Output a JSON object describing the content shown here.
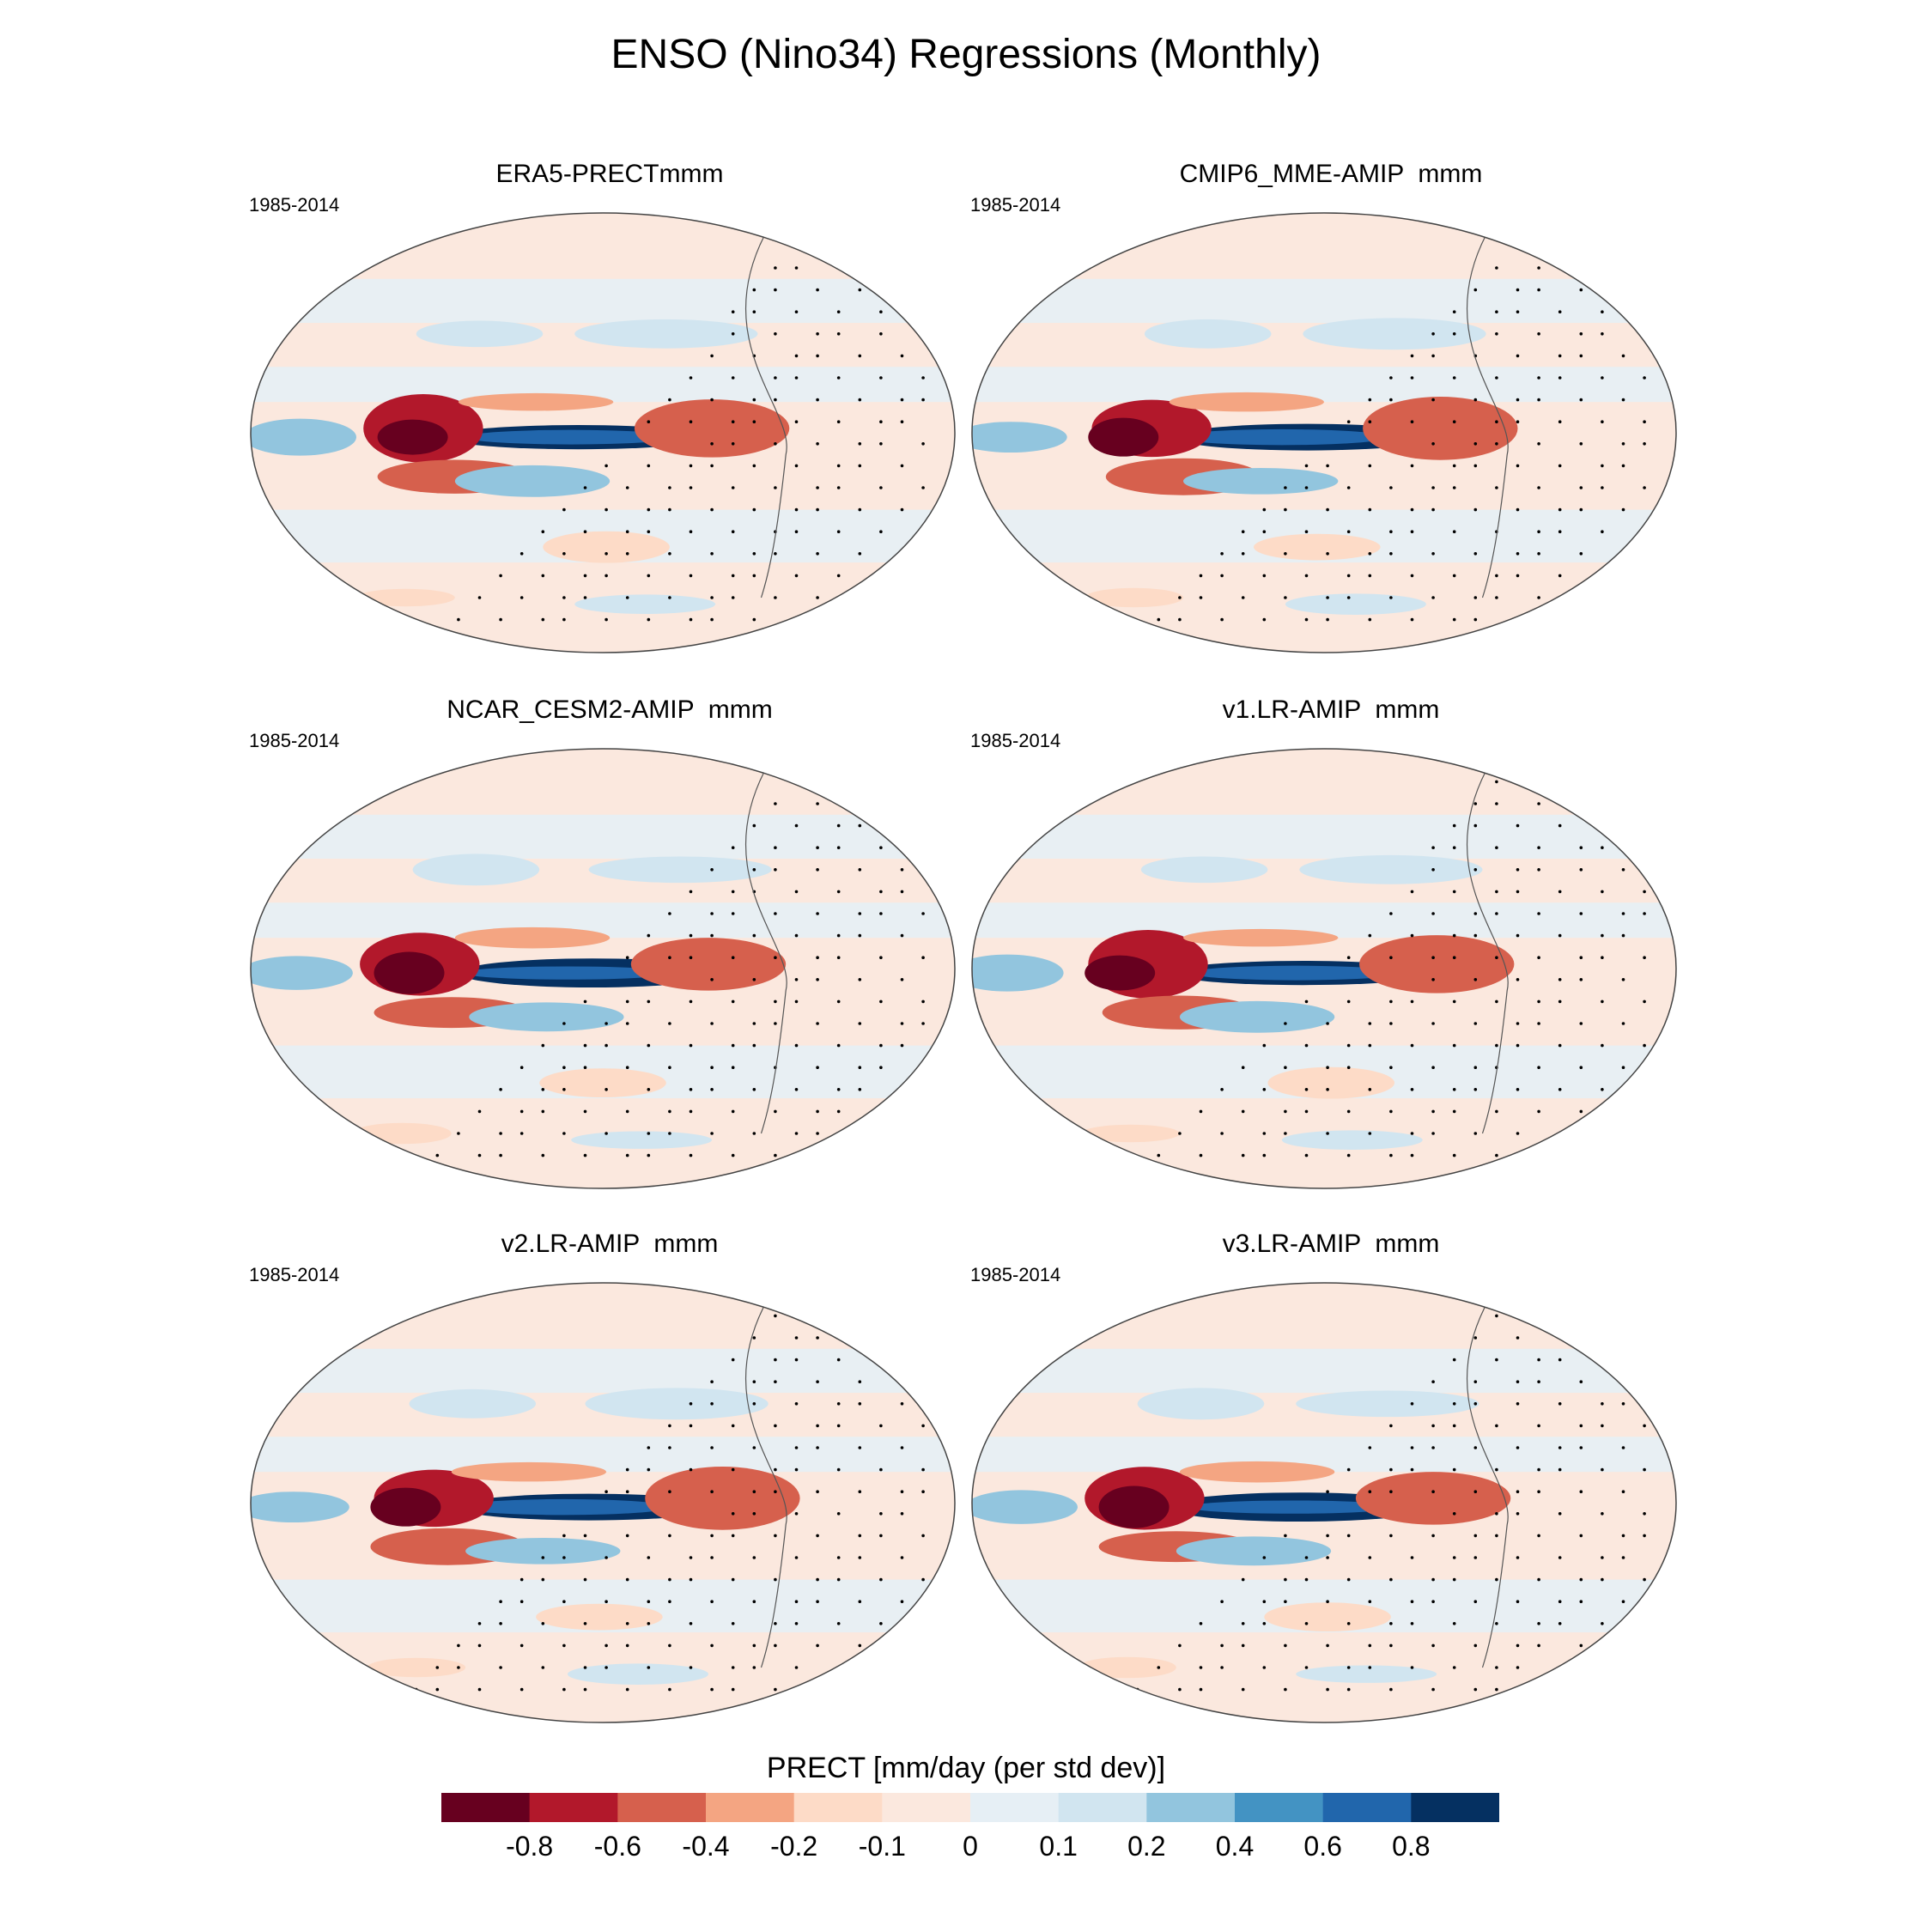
{
  "title": "ENSO (Nino34) Regressions (Monthly)",
  "chart_data": {
    "type": "heatmap",
    "projection": "Robinson",
    "variable": "PRECT",
    "panels": [
      {
        "title": "ERA5-PRECTmmm",
        "period": "1985-2014"
      },
      {
        "title": "CMIP6_MME-AMIP  mmm",
        "period": "1985-2014"
      },
      {
        "title": "NCAR_CESM2-AMIP  mmm",
        "period": "1985-2014"
      },
      {
        "title": "v1.LR-AMIP  mmm",
        "period": "1985-2014"
      },
      {
        "title": "v2.LR-AMIP  mmm",
        "period": "1985-2014"
      },
      {
        "title": "v3.LR-AMIP  mmm",
        "period": "1985-2014"
      }
    ],
    "colorbar": {
      "label": "PRECT [mm/day (per std dev)]",
      "ticks": [
        "-0.8",
        "-0.6",
        "-0.4",
        "-0.2",
        "-0.1",
        "0",
        "0.1",
        "0.2",
        "0.4",
        "0.6",
        "0.8"
      ],
      "colors": [
        "#67001f",
        "#b2182b",
        "#d6604d",
        "#f4a582",
        "#fddbc7",
        "#fbe8de",
        "#e6eff5",
        "#d1e5f0",
        "#92c5de",
        "#4393c3",
        "#2166ac",
        "#053061"
      ]
    }
  }
}
